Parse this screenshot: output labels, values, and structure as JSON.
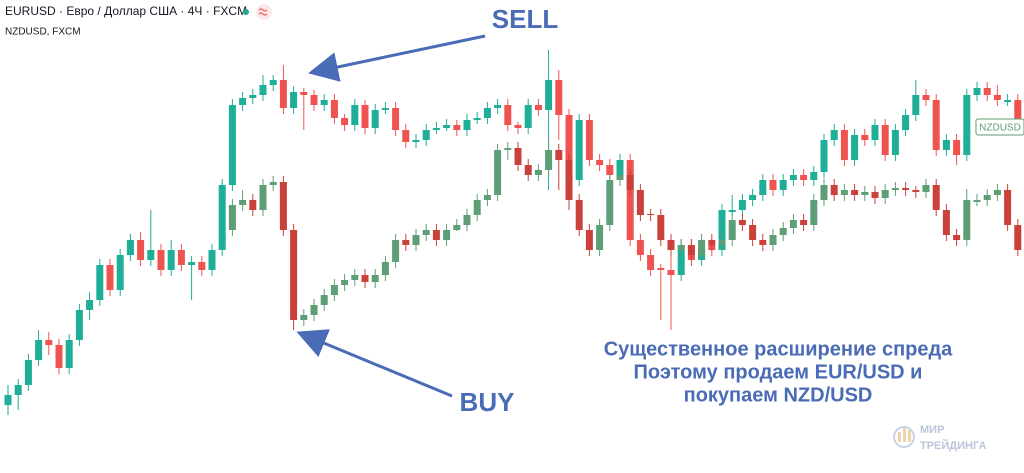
{
  "chart_data": {
    "type": "candlestick",
    "ylim": [
      0,
      480
    ],
    "price_tag": "NZDUSD",
    "annotations": [
      "SELL",
      "BUY"
    ],
    "note": [
      "Существенное расширение спреда",
      "Поэтому продаем EUR/USD и",
      "покупаем NZD/USD"
    ],
    "series": [
      {
        "name": "EURUSD · Евро / Доллар США · 4Ч · FXCM",
        "up_color": "#1fae97",
        "down_color": "#ef5350",
        "values": [
          [
            75,
            95,
            65,
            85
          ],
          [
            85,
            101,
            70,
            95
          ],
          [
            95,
            126,
            89,
            120
          ],
          [
            120,
            150,
            114,
            140
          ],
          [
            140,
            148,
            125,
            135
          ],
          [
            135,
            141,
            106,
            112
          ],
          [
            112,
            146,
            106,
            140
          ],
          [
            140,
            176,
            134,
            170
          ],
          [
            170,
            188,
            160,
            180
          ],
          [
            180,
            221,
            174,
            215
          ],
          [
            215,
            221,
            184,
            190
          ],
          [
            190,
            231,
            184,
            225
          ],
          [
            225,
            246,
            219,
            240
          ],
          [
            240,
            248,
            214,
            220
          ],
          [
            220,
            270,
            214,
            230
          ],
          [
            230,
            236,
            204,
            210
          ],
          [
            210,
            240,
            204,
            230
          ],
          [
            230,
            236,
            209,
            215
          ],
          [
            215,
            224,
            180,
            218
          ],
          [
            218,
            224,
            204,
            210
          ],
          [
            210,
            236,
            204,
            230
          ],
          [
            230,
            301,
            224,
            295
          ],
          [
            295,
            381,
            289,
            375
          ],
          [
            375,
            388,
            369,
            382
          ],
          [
            382,
            391,
            376,
            385
          ],
          [
            385,
            405,
            379,
            395
          ],
          [
            395,
            405,
            389,
            400
          ],
          [
            400,
            415,
            366,
            372
          ],
          [
            372,
            394,
            366,
            388
          ],
          [
            388,
            392,
            350,
            385
          ],
          [
            385,
            390,
            369,
            375
          ],
          [
            375,
            386,
            369,
            380
          ],
          [
            380,
            386,
            356,
            362
          ],
          [
            362,
            366,
            349,
            355
          ],
          [
            355,
            381,
            349,
            375
          ],
          [
            375,
            380,
            346,
            352
          ],
          [
            352,
            376,
            346,
            370
          ],
          [
            370,
            378,
            366,
            372
          ],
          [
            372,
            378,
            344,
            350
          ],
          [
            350,
            356,
            332,
            338
          ],
          [
            338,
            346,
            332,
            340
          ],
          [
            340,
            356,
            334,
            350
          ],
          [
            350,
            358,
            346,
            352
          ],
          [
            352,
            361,
            349,
            355
          ],
          [
            355,
            360,
            344,
            350
          ],
          [
            350,
            366,
            344,
            360
          ],
          [
            360,
            368,
            356,
            362
          ],
          [
            362,
            378,
            356,
            372
          ],
          [
            372,
            381,
            366,
            375
          ],
          [
            375,
            381,
            349,
            355
          ],
          [
            355,
            358,
            346,
            352
          ],
          [
            352,
            381,
            346,
            375
          ],
          [
            375,
            381,
            364,
            370
          ],
          [
            370,
            430,
            290,
            400
          ],
          [
            400,
            410,
            340,
            365
          ],
          [
            365,
            371,
            280,
            300
          ],
          [
            300,
            366,
            294,
            360
          ],
          [
            360,
            366,
            314,
            320
          ],
          [
            320,
            326,
            309,
            315
          ],
          [
            315,
            321,
            299,
            305
          ],
          [
            305,
            326,
            299,
            320
          ],
          [
            320,
            326,
            234,
            240
          ],
          [
            240,
            246,
            219,
            225
          ],
          [
            225,
            231,
            204,
            210
          ],
          [
            212,
            216,
            160,
            210
          ],
          [
            210,
            230,
            150,
            205
          ],
          [
            205,
            241,
            199,
            235
          ],
          [
            235,
            241,
            214,
            220
          ],
          [
            220,
            241,
            214,
            235
          ],
          [
            235,
            241,
            224,
            230
          ],
          [
            230,
            276,
            224,
            270
          ],
          [
            268,
            285,
            264,
            270
          ],
          [
            270,
            286,
            264,
            280
          ],
          [
            280,
            291,
            274,
            285
          ],
          [
            285,
            306,
            279,
            300
          ],
          [
            300,
            306,
            284,
            290
          ],
          [
            290,
            306,
            284,
            300
          ],
          [
            300,
            311,
            294,
            305
          ],
          [
            305,
            311,
            294,
            300
          ],
          [
            300,
            314,
            294,
            308
          ],
          [
            308,
            346,
            302,
            340
          ],
          [
            340,
            356,
            334,
            350
          ],
          [
            350,
            356,
            314,
            320
          ],
          [
            320,
            351,
            314,
            345
          ],
          [
            345,
            351,
            334,
            340
          ],
          [
            340,
            361,
            334,
            355
          ],
          [
            355,
            361,
            319,
            325
          ],
          [
            325,
            356,
            319,
            350
          ],
          [
            350,
            371,
            344,
            365
          ],
          [
            365,
            400,
            359,
            385
          ],
          [
            385,
            391,
            374,
            380
          ],
          [
            380,
            386,
            324,
            330
          ],
          [
            330,
            346,
            324,
            340
          ],
          [
            340,
            346,
            315,
            325
          ],
          [
            325,
            391,
            319,
            385
          ],
          [
            385,
            398,
            379,
            392
          ],
          [
            392,
            398,
            379,
            385
          ],
          [
            385,
            395,
            374,
            380
          ],
          [
            378,
            386,
            374,
            380
          ],
          [
            380,
            386,
            354,
            360
          ]
        ]
      },
      {
        "name": "NZDUSD, FXCM",
        "up_color": "#5e9e76",
        "down_color": "#c9413a",
        "values": [
          null,
          null,
          null,
          null,
          null,
          null,
          null,
          null,
          null,
          null,
          null,
          null,
          null,
          null,
          null,
          null,
          null,
          null,
          null,
          null,
          null,
          null,
          [
            250,
            281,
            244,
            275
          ],
          [
            275,
            290,
            269,
            280
          ],
          [
            280,
            286,
            264,
            270
          ],
          [
            270,
            301,
            264,
            295
          ],
          [
            295,
            304,
            289,
            298
          ],
          [
            298,
            304,
            244,
            250
          ],
          [
            250,
            256,
            150,
            160
          ],
          [
            160,
            171,
            154,
            165
          ],
          [
            165,
            181,
            159,
            175
          ],
          [
            175,
            191,
            169,
            185
          ],
          [
            185,
            201,
            179,
            195
          ],
          [
            195,
            206,
            189,
            200
          ],
          [
            200,
            211,
            194,
            205
          ],
          [
            205,
            211,
            192,
            198
          ],
          [
            198,
            211,
            192,
            205
          ],
          [
            205,
            224,
            199,
            218
          ],
          [
            218,
            246,
            212,
            240
          ],
          [
            240,
            246,
            229,
            235
          ],
          [
            235,
            251,
            229,
            245
          ],
          [
            245,
            256,
            239,
            250
          ],
          [
            250,
            256,
            234,
            240
          ],
          [
            240,
            256,
            234,
            250
          ],
          [
            250,
            261,
            249,
            255
          ],
          [
            255,
            271,
            249,
            265
          ],
          [
            265,
            286,
            259,
            280
          ],
          [
            280,
            291,
            274,
            285
          ],
          [
            285,
            336,
            279,
            330
          ],
          [
            330,
            338,
            320,
            332
          ],
          [
            332,
            338,
            309,
            315
          ],
          [
            315,
            321,
            299,
            305
          ],
          [
            305,
            316,
            299,
            310
          ],
          [
            310,
            340,
            304,
            330
          ],
          [
            330,
            336,
            290,
            320
          ],
          [
            320,
            326,
            270,
            280
          ],
          [
            280,
            286,
            244,
            250
          ],
          [
            250,
            256,
            224,
            230
          ],
          [
            230,
            261,
            224,
            255
          ],
          [
            255,
            306,
            249,
            300
          ],
          [
            300,
            311,
            294,
            305
          ],
          [
            305,
            311,
            284,
            290
          ],
          [
            290,
            296,
            259,
            265
          ],
          [
            266,
            271,
            259,
            265
          ],
          [
            265,
            271,
            234,
            240
          ],
          [
            240,
            246,
            224,
            230
          ],
          [
            230,
            241,
            224,
            235
          ],
          [
            235,
            241,
            219,
            225
          ],
          [
            225,
            246,
            219,
            240
          ],
          [
            240,
            246,
            229,
            235
          ],
          [
            235,
            246,
            229,
            240
          ],
          [
            240,
            266,
            234,
            260
          ],
          [
            260,
            266,
            249,
            255
          ],
          [
            255,
            261,
            234,
            240
          ],
          [
            240,
            246,
            229,
            235
          ],
          [
            235,
            251,
            229,
            245
          ],
          [
            245,
            258,
            239,
            252
          ],
          [
            252,
            266,
            246,
            260
          ],
          [
            260,
            266,
            249,
            255
          ],
          [
            255,
            286,
            249,
            280
          ],
          [
            280,
            301,
            274,
            295
          ],
          [
            295,
            301,
            279,
            285
          ],
          [
            285,
            296,
            279,
            290
          ],
          [
            290,
            296,
            279,
            285
          ],
          [
            285,
            294,
            279,
            288
          ],
          [
            288,
            294,
            276,
            282
          ],
          [
            282,
            296,
            276,
            290
          ],
          [
            290,
            298,
            284,
            292
          ],
          [
            292,
            298,
            284,
            290
          ],
          [
            290,
            294,
            282,
            288
          ],
          [
            288,
            301,
            282,
            295
          ],
          [
            295,
            301,
            264,
            270
          ],
          [
            270,
            276,
            239,
            245
          ],
          [
            245,
            251,
            234,
            240
          ],
          [
            240,
            291,
            234,
            280
          ],
          [
            278,
            286,
            274,
            280
          ],
          [
            280,
            291,
            274,
            285
          ],
          [
            285,
            296,
            279,
            290
          ],
          [
            290,
            296,
            249,
            255
          ],
          [
            255,
            261,
            224,
            230
          ]
        ]
      }
    ]
  },
  "logo": {
    "line1": "МИР",
    "line2": "ТРЕЙДИНГА"
  }
}
